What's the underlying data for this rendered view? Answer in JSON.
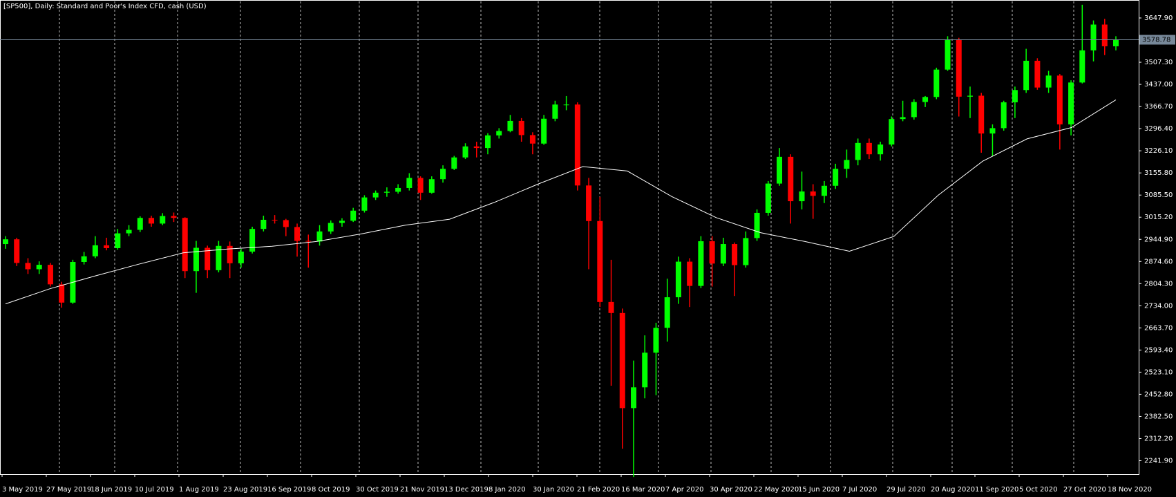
{
  "chart_data": {
    "type": "candlestick",
    "title": "[SP500], Daily:  Standard and Poor's Index CFD, cash (USD)",
    "categories": [
      "3 May 2019",
      "27 May 2019",
      "18 Jun 2019",
      "10 Jul 2019",
      "1 Aug 2019",
      "23 Aug 2019",
      "16 Sep 2019",
      "8 Oct 2019",
      "30 Oct 2019",
      "21 Nov 2019",
      "13 Dec 2019",
      "8 Jan 2020",
      "30 Jan 2020",
      "21 Feb 2020",
      "16 Mar 2020",
      "7 Apr 2020",
      "30 Apr 2020",
      "22 May 2020",
      "15 Jun 2020",
      "7 Jul 2020",
      "29 Jul 2020",
      "20 Aug 2020",
      "11 Sep 2020",
      "5 Oct 2020",
      "27 Oct 2020",
      "18 Nov 2020"
    ],
    "up_color": "#00ff00",
    "down_color": "#ff0000",
    "ohlc": [
      [
        2930,
        2955,
        2915,
        2945
      ],
      [
        2945,
        2950,
        2860,
        2870
      ],
      [
        2870,
        2885,
        2835,
        2850
      ],
      [
        2850,
        2875,
        2835,
        2864
      ],
      [
        2864,
        2870,
        2795,
        2802
      ],
      [
        2802,
        2810,
        2728,
        2744
      ],
      [
        2744,
        2880,
        2740,
        2873
      ],
      [
        2873,
        2905,
        2865,
        2891
      ],
      [
        2891,
        2955,
        2885,
        2926
      ],
      [
        2926,
        2950,
        2910,
        2917
      ],
      [
        2917,
        2978,
        2912,
        2964
      ],
      [
        2964,
        2990,
        2955,
        2975
      ],
      [
        2975,
        3018,
        2968,
        3013
      ],
      [
        3013,
        3020,
        2985,
        2995
      ],
      [
        2995,
        3028,
        2990,
        3019
      ],
      [
        3019,
        3030,
        3000,
        3013
      ],
      [
        3013,
        3015,
        2822,
        2844
      ],
      [
        2844,
        2940,
        2775,
        2918
      ],
      [
        2918,
        2925,
        2822,
        2847
      ],
      [
        2847,
        2940,
        2840,
        2924
      ],
      [
        2924,
        2938,
        2822,
        2869
      ],
      [
        2869,
        2915,
        2855,
        2906
      ],
      [
        2906,
        2985,
        2900,
        2978
      ],
      [
        2978,
        3020,
        2970,
        3007
      ],
      [
        3007,
        3022,
        2995,
        3006
      ],
      [
        3006,
        3010,
        2955,
        2984
      ],
      [
        2984,
        2995,
        2890,
        2940
      ],
      [
        2940,
        2960,
        2855,
        2938
      ],
      [
        2938,
        2990,
        2925,
        2970
      ],
      [
        2970,
        3005,
        2962,
        2997
      ],
      [
        2997,
        3012,
        2985,
        3004
      ],
      [
        3004,
        3045,
        3000,
        3036
      ],
      [
        3036,
        3085,
        3030,
        3078
      ],
      [
        3078,
        3100,
        3070,
        3093
      ],
      [
        3093,
        3110,
        3080,
        3096
      ],
      [
        3096,
        3120,
        3090,
        3108
      ],
      [
        3108,
        3155,
        3100,
        3140
      ],
      [
        3140,
        3145,
        3070,
        3093
      ],
      [
        3093,
        3145,
        3090,
        3136
      ],
      [
        3136,
        3180,
        3125,
        3169
      ],
      [
        3169,
        3210,
        3165,
        3205
      ],
      [
        3205,
        3250,
        3200,
        3240
      ],
      [
        3240,
        3255,
        3205,
        3235
      ],
      [
        3235,
        3282,
        3215,
        3275
      ],
      [
        3275,
        3298,
        3265,
        3289
      ],
      [
        3289,
        3340,
        3285,
        3321
      ],
      [
        3321,
        3330,
        3255,
        3276
      ],
      [
        3276,
        3285,
        3215,
        3249
      ],
      [
        3249,
        3340,
        3245,
        3328
      ],
      [
        3328,
        3385,
        3320,
        3373
      ],
      [
        3373,
        3400,
        3355,
        3373
      ],
      [
        3373,
        3380,
        3100,
        3116
      ],
      [
        3116,
        3140,
        2850,
        3003
      ],
      [
        3003,
        3080,
        2730,
        2746
      ],
      [
        2746,
        2880,
        2480,
        2711
      ],
      [
        2711,
        2725,
        2280,
        2409
      ],
      [
        2409,
        2560,
        2190,
        2475
      ],
      [
        2475,
        2640,
        2440,
        2585
      ],
      [
        2585,
        2680,
        2450,
        2664
      ],
      [
        2664,
        2820,
        2620,
        2761
      ],
      [
        2761,
        2890,
        2740,
        2874
      ],
      [
        2874,
        2885,
        2730,
        2797
      ],
      [
        2797,
        2955,
        2790,
        2939
      ],
      [
        2939,
        2955,
        2795,
        2868
      ],
      [
        2868,
        2950,
        2860,
        2930
      ],
      [
        2930,
        2935,
        2765,
        2863
      ],
      [
        2863,
        2970,
        2855,
        2949
      ],
      [
        2949,
        3040,
        2940,
        3029
      ],
      [
        3029,
        3130,
        3020,
        3122
      ],
      [
        3122,
        3235,
        3115,
        3207
      ],
      [
        3207,
        3215,
        2995,
        3066
      ],
      [
        3066,
        3160,
        3040,
        3097
      ],
      [
        3097,
        3120,
        3010,
        3083
      ],
      [
        3083,
        3130,
        3060,
        3115
      ],
      [
        3115,
        3185,
        3105,
        3169
      ],
      [
        3169,
        3230,
        3140,
        3197
      ],
      [
        3197,
        3265,
        3180,
        3251
      ],
      [
        3251,
        3265,
        3200,
        3215
      ],
      [
        3215,
        3255,
        3195,
        3246
      ],
      [
        3246,
        3335,
        3240,
        3327
      ],
      [
        3327,
        3385,
        3320,
        3333
      ],
      [
        3333,
        3390,
        3325,
        3381
      ],
      [
        3381,
        3400,
        3365,
        3397
      ],
      [
        3397,
        3490,
        3390,
        3484
      ],
      [
        3484,
        3590,
        3480,
        3580
      ],
      [
        3580,
        3585,
        3335,
        3398
      ],
      [
        3398,
        3430,
        3330,
        3401
      ],
      [
        3401,
        3410,
        3220,
        3281
      ],
      [
        3281,
        3310,
        3210,
        3298
      ],
      [
        3298,
        3385,
        3290,
        3380
      ],
      [
        3380,
        3430,
        3330,
        3419
      ],
      [
        3419,
        3550,
        3410,
        3512
      ],
      [
        3512,
        3520,
        3420,
        3427
      ],
      [
        3427,
        3480,
        3410,
        3465
      ],
      [
        3465,
        3470,
        3230,
        3310
      ],
      [
        3310,
        3450,
        3275,
        3443
      ],
      [
        3443,
        3690,
        3440,
        3545
      ],
      [
        3545,
        3640,
        3510,
        3627
      ],
      [
        3627,
        3645,
        3530,
        3558
      ],
      [
        3558,
        3590,
        3545,
        3578.78
      ]
    ],
    "moving_average": {
      "color": "#ffffff",
      "values": [
        2740,
        2788,
        2828,
        2866,
        2902,
        2914,
        2923,
        2938,
        2962,
        2990,
        3009,
        3062,
        3121,
        3176,
        3162,
        3081,
        3014,
        2966,
        2938,
        2907,
        2954,
        3085,
        3193,
        3264,
        3300,
        3388
      ]
    },
    "ylim": [
      2199.1,
      3700.6
    ],
    "yticks": [
      {
        "value": 2241.9,
        "label": "2241.90"
      },
      {
        "value": 2312.2,
        "label": "2312.20"
      },
      {
        "value": 2382.5,
        "label": "2382.50"
      },
      {
        "value": 2452.8,
        "label": "2452.80"
      },
      {
        "value": 2523.1,
        "label": "2523.10"
      },
      {
        "value": 2593.4,
        "label": "2593.40"
      },
      {
        "value": 2663.7,
        "label": "2663.70"
      },
      {
        "value": 2734,
        "label": "2734.00"
      },
      {
        "value": 2804.3,
        "label": "2804.30"
      },
      {
        "value": 2874.6,
        "label": "2874.60"
      },
      {
        "value": 2944.9,
        "label": "2944.90"
      },
      {
        "value": 3015.2,
        "label": "3015.20"
      },
      {
        "value": 3085.5,
        "label": "3085.50"
      },
      {
        "value": 3155.8,
        "label": "3155.80"
      },
      {
        "value": 3226.1,
        "label": "3226.10"
      },
      {
        "value": 3296.4,
        "label": "3296.40"
      },
      {
        "value": 3366.7,
        "label": "3366.70"
      },
      {
        "value": 3437,
        "label": "3437.00"
      },
      {
        "value": 3507.3,
        "label": "3507.30"
      },
      {
        "value": 3647.9,
        "label": "3647.90"
      }
    ],
    "grid": true
  }
}
